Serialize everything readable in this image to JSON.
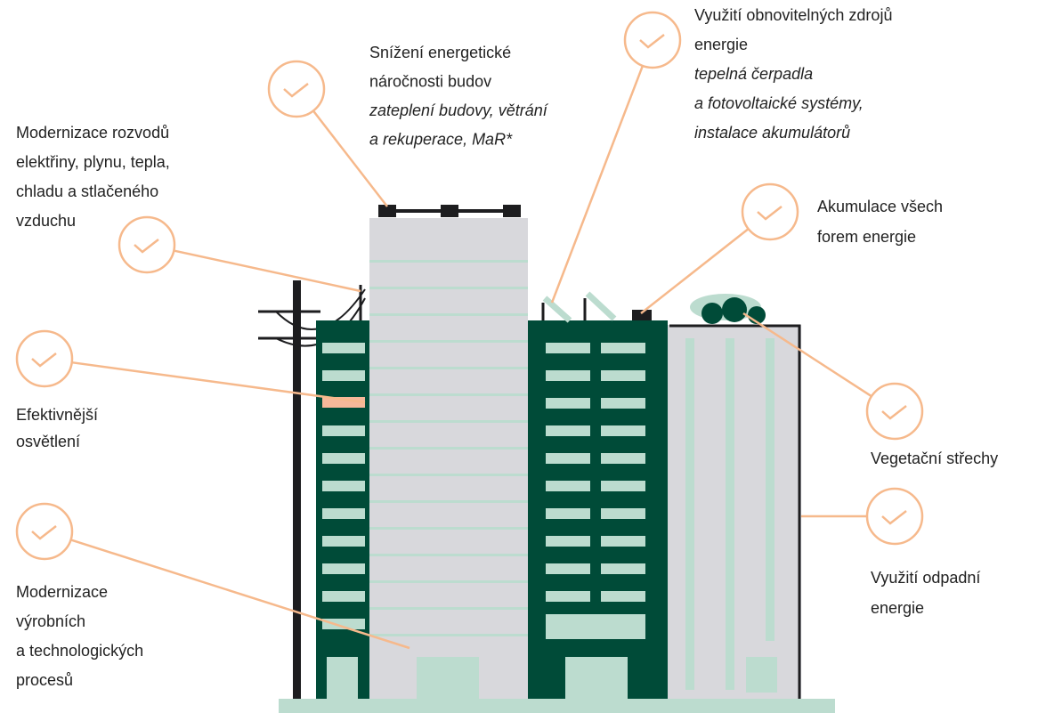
{
  "nodes": [
    {
      "title": [
        "Snížení energetické",
        "náročnosti budov"
      ],
      "detail": [
        "zateplení budovy, větrání",
        "a rekuperace, MaR*"
      ]
    },
    {
      "title": [
        "Využití obnovitelných zdrojů",
        "energie"
      ],
      "detail": [
        "tepelná čerpadla",
        "a fotovoltaické systémy,",
        "instalace akumulátorů"
      ]
    },
    {
      "title": [
        "Modernizace rozvodů",
        "elektřiny, plynu, tepla,",
        "chladu a stlačeného",
        "vzduchu"
      ]
    },
    {
      "title": [
        "Akumulace všech",
        "forem energie"
      ]
    },
    {
      "title": [
        "Efektivnější",
        "osvětlení"
      ]
    },
    {
      "title": [
        "Vegetační střechy"
      ]
    },
    {
      "title": [
        "Využití odpadní",
        "energie"
      ]
    },
    {
      "title": [
        "Modernizace",
        "výrobních",
        "a technologických",
        "procesů"
      ]
    }
  ]
}
